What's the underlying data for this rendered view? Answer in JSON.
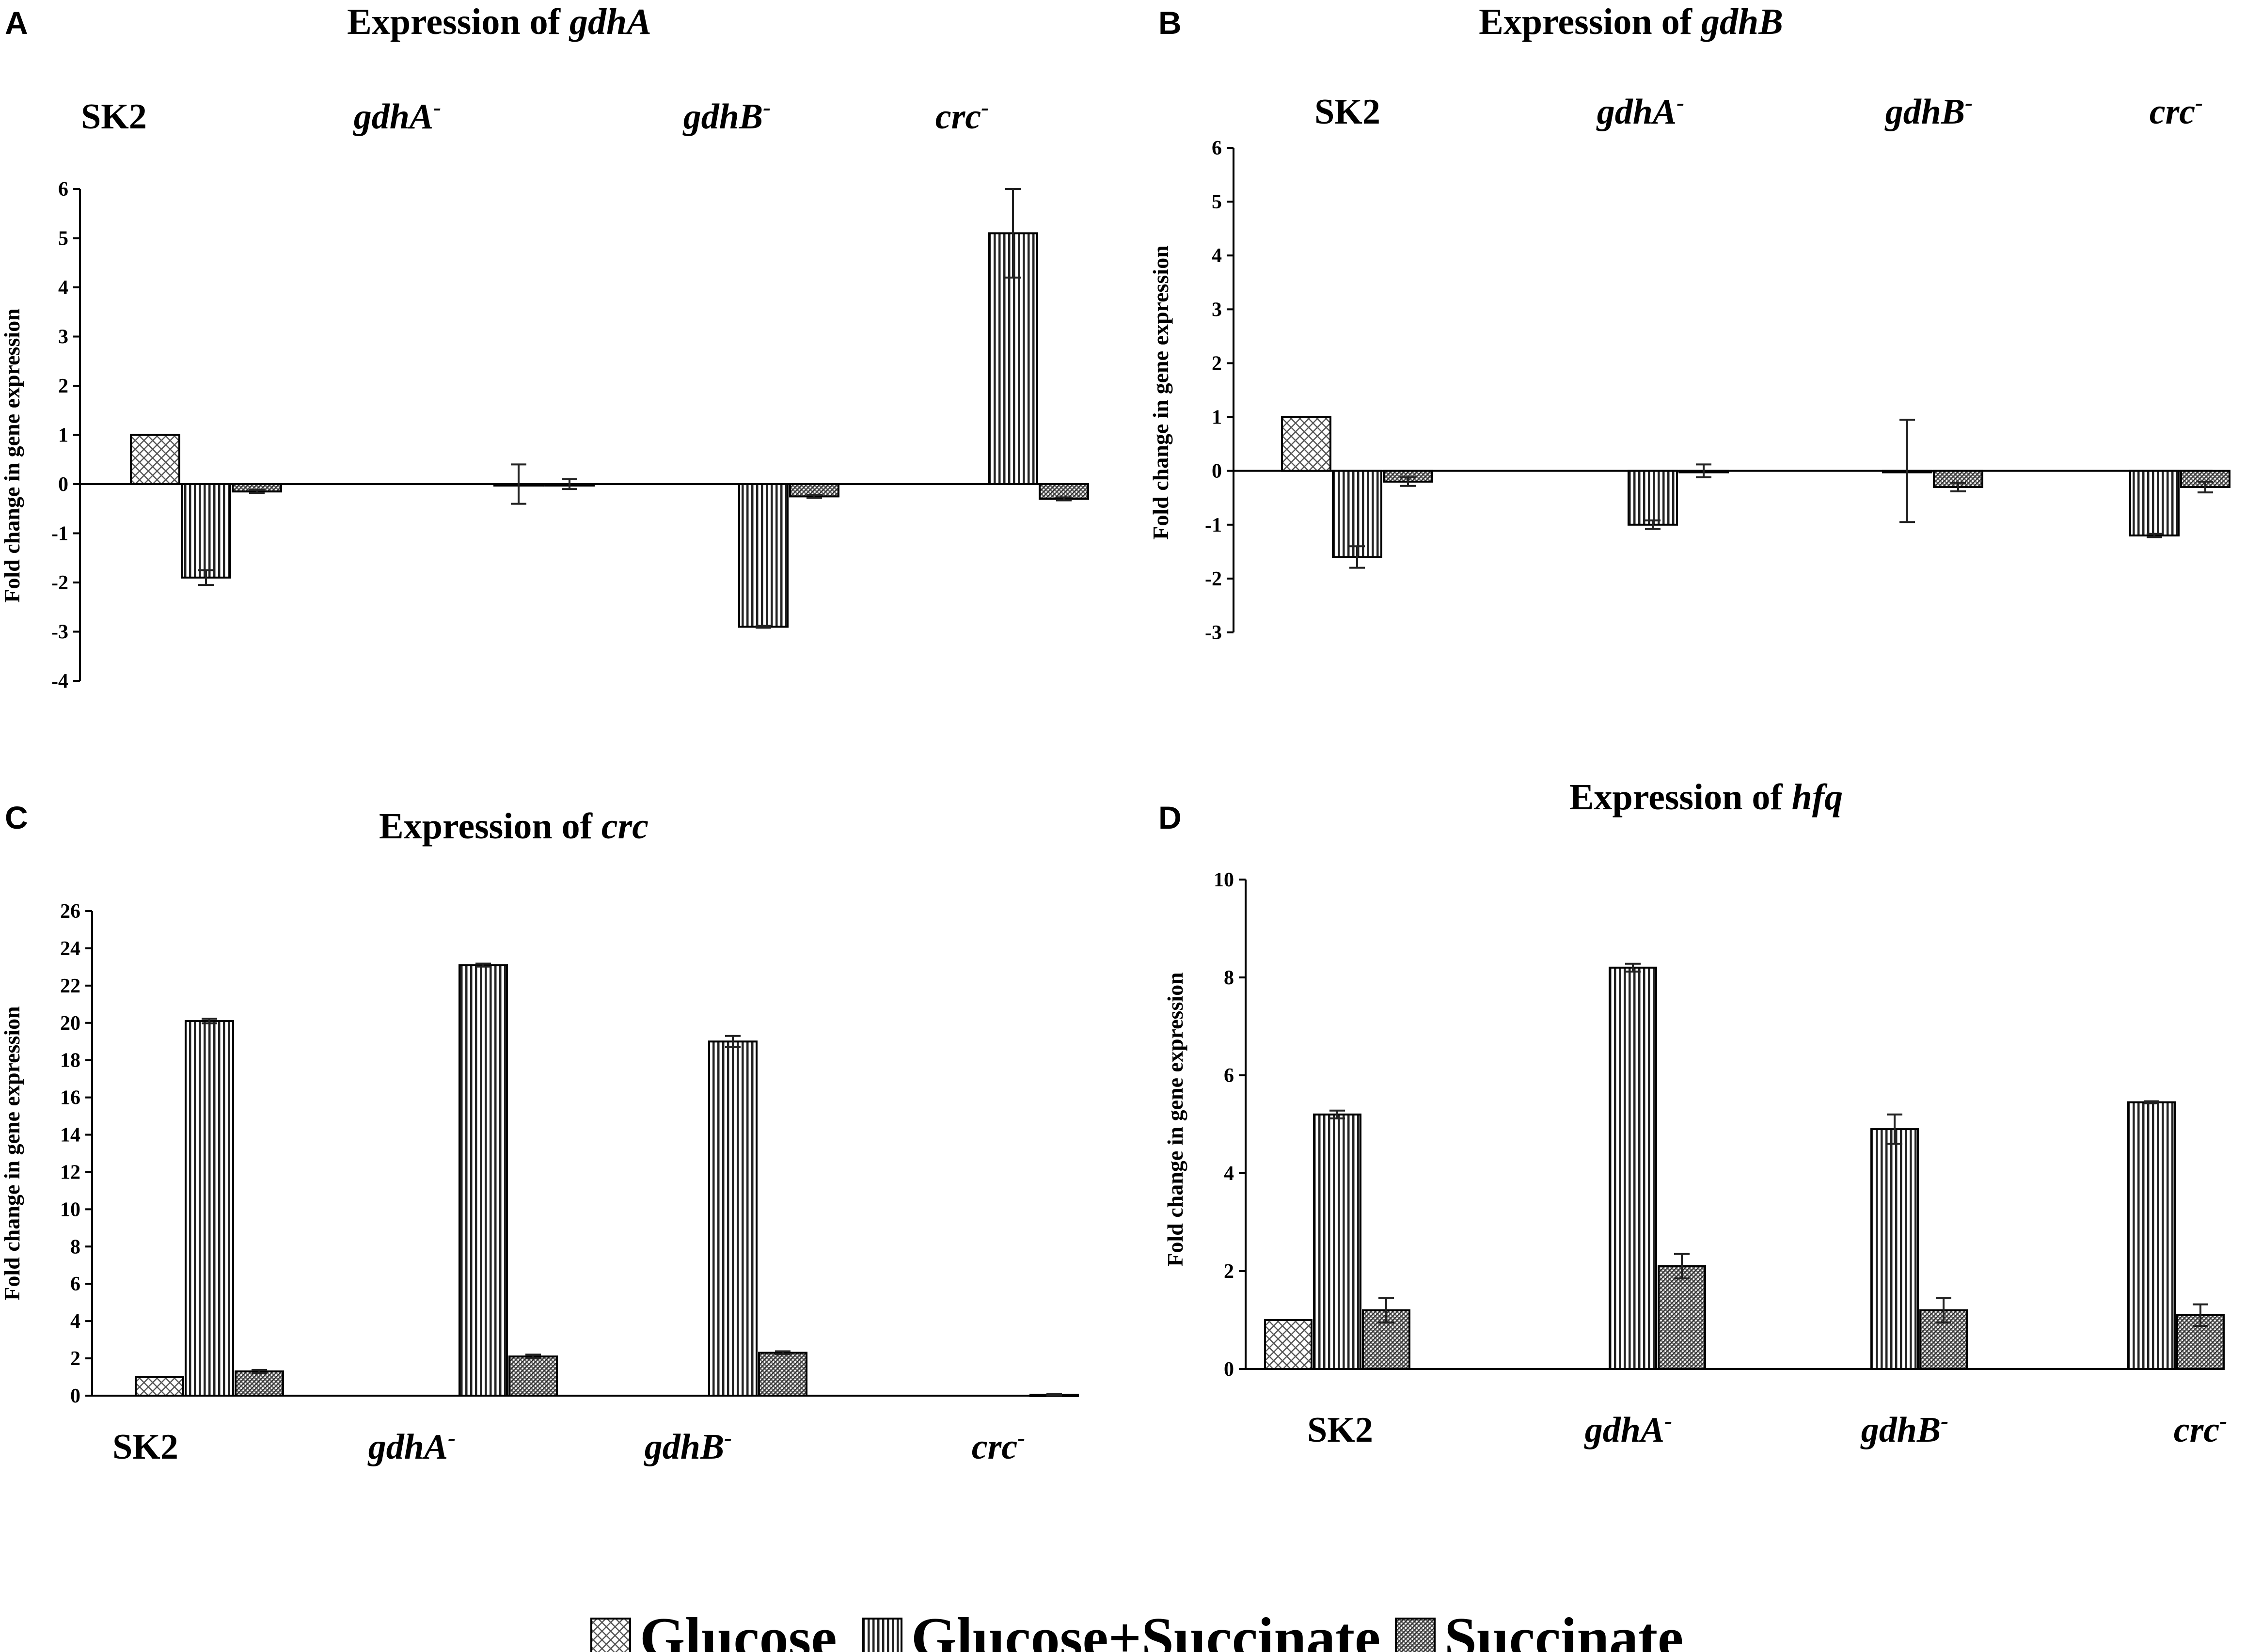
{
  "legend": {
    "items": [
      {
        "label": "Glucose",
        "pattern": "hatch"
      },
      {
        "label": "Glucose+Succinate",
        "pattern": "vstripe"
      },
      {
        "label": "Succinate",
        "pattern": "dots"
      }
    ]
  },
  "colors": {
    "ink": "#000000",
    "bar_fill": "#ffffff",
    "dots": "#555555"
  },
  "chart_data": [
    {
      "panel": "A",
      "type": "bar",
      "title_prefix": "Expression of ",
      "title_gene": "gdhA",
      "ylabel": "Fold change in gene expression",
      "ylim": [
        -4,
        6
      ],
      "yticks": [
        "-4",
        "-3",
        "-2",
        "-1",
        "0",
        "1",
        "2",
        "3",
        "4",
        "5",
        "6"
      ],
      "categories": [
        {
          "base": "SK2",
          "sup": ""
        },
        {
          "base": "gdhA",
          "sup": "-"
        },
        {
          "base": "gdhB",
          "sup": "-"
        },
        {
          "base": "crc",
          "sup": "-"
        }
      ],
      "series": [
        {
          "name": "Glucose",
          "values": [
            1.0,
            null,
            null,
            null
          ],
          "errors": [
            0,
            null,
            null,
            null
          ]
        },
        {
          "name": "Glucose+Succinate",
          "values": [
            -1.9,
            0.0,
            -2.9,
            5.1
          ],
          "errors": [
            0.15,
            0.4,
            0.02,
            0.9
          ]
        },
        {
          "name": "Succinate",
          "values": [
            -0.15,
            0.0,
            -0.25,
            -0.3
          ],
          "errors": [
            0.03,
            0.1,
            0.03,
            0.03
          ]
        }
      ]
    },
    {
      "panel": "B",
      "type": "bar",
      "title_prefix": "Expression of ",
      "title_gene": "gdhB",
      "ylabel": "Fold change in gene expression",
      "ylim": [
        -3,
        6
      ],
      "yticks": [
        "-3",
        "-2",
        "-1",
        "0",
        "1",
        "2",
        "3",
        "4",
        "5",
        "6"
      ],
      "categories": [
        {
          "base": "SK2",
          "sup": ""
        },
        {
          "base": "gdhA",
          "sup": "-"
        },
        {
          "base": "gdhB",
          "sup": "-"
        },
        {
          "base": "crc",
          "sup": "-"
        }
      ],
      "series": [
        {
          "name": "Glucose",
          "values": [
            1.0,
            null,
            null,
            null
          ],
          "errors": [
            0,
            null,
            null,
            null
          ]
        },
        {
          "name": "Glucose+Succinate",
          "values": [
            -1.6,
            -1.0,
            0.0,
            -1.2
          ],
          "errors": [
            0.2,
            0.08,
            0.95,
            0.03
          ]
        },
        {
          "name": "Succinate",
          "values": [
            -0.2,
            0.0,
            -0.3,
            -0.3
          ],
          "errors": [
            0.08,
            0.12,
            0.08,
            0.1
          ]
        }
      ]
    },
    {
      "panel": "C",
      "type": "bar",
      "title_prefix": "Expression of ",
      "title_gene": "crc",
      "ylabel": "Fold change in gene expression",
      "ylim": [
        0,
        26
      ],
      "yticks": [
        "0",
        "2",
        "4",
        "6",
        "8",
        "10",
        "12",
        "14",
        "16",
        "18",
        "20",
        "22",
        "24",
        "26"
      ],
      "categories": [
        {
          "base": "SK2",
          "sup": ""
        },
        {
          "base": "gdhA",
          "sup": "-"
        },
        {
          "base": "gdhB",
          "sup": "-"
        },
        {
          "base": "crc",
          "sup": "-"
        }
      ],
      "series": [
        {
          "name": "Glucose",
          "values": [
            1.0,
            null,
            null,
            null
          ],
          "errors": [
            0,
            null,
            null,
            null
          ]
        },
        {
          "name": "Glucose+Succinate",
          "values": [
            20.1,
            23.1,
            19.0,
            null
          ],
          "errors": [
            0.12,
            0.08,
            0.3,
            null
          ]
        },
        {
          "name": "Succinate",
          "values": [
            1.3,
            2.1,
            2.3,
            0.05
          ],
          "errors": [
            0.08,
            0.1,
            0.08,
            0.05
          ]
        }
      ]
    },
    {
      "panel": "D",
      "type": "bar",
      "title_prefix": "Expression of ",
      "title_gene": "hfq",
      "ylabel": "Fold change in gene expression",
      "ylim": [
        0,
        10
      ],
      "yticks": [
        "0",
        "2",
        "4",
        "6",
        "8",
        "10"
      ],
      "categories": [
        {
          "base": "SK2",
          "sup": ""
        },
        {
          "base": "gdhA",
          "sup": "-"
        },
        {
          "base": "gdhB",
          "sup": "-"
        },
        {
          "base": "crc",
          "sup": "-"
        }
      ],
      "series": [
        {
          "name": "Glucose",
          "values": [
            1.0,
            null,
            null,
            null
          ],
          "errors": [
            0,
            null,
            null,
            null
          ]
        },
        {
          "name": "Glucose+Succinate",
          "values": [
            5.2,
            8.2,
            4.9,
            5.45
          ],
          "errors": [
            0.08,
            0.08,
            0.3,
            0.02
          ]
        },
        {
          "name": "Succinate",
          "values": [
            1.2,
            2.1,
            1.2,
            1.1
          ],
          "errors": [
            0.25,
            0.25,
            0.25,
            0.22
          ]
        }
      ]
    }
  ]
}
